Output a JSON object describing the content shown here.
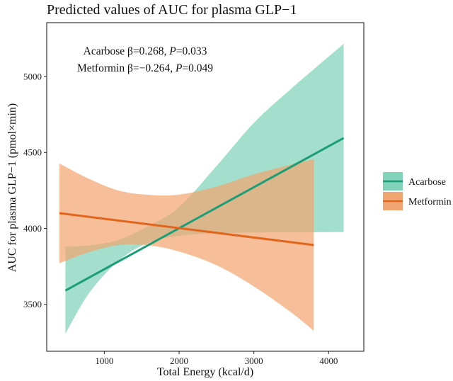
{
  "chart_data": {
    "type": "line",
    "title": "Predicted values of AUC for plasma GLP−1",
    "xlabel": "Total Energy (kcal/d)",
    "ylabel": "AUC for plasma GLP−1 (pmol×min)",
    "xlim": [
      230,
      4470
    ],
    "ylim": [
      3190,
      5355
    ],
    "xticks": [
      1000,
      2000,
      3000,
      4000
    ],
    "xtick_labels": [
      "1000",
      "2000",
      "3000",
      "4000"
    ],
    "yticks": [
      3500,
      4000,
      4500,
      5000
    ],
    "ytick_labels": [
      "3500",
      "4000",
      "4500",
      "5000"
    ],
    "grid": false,
    "legend_position": "right",
    "series": [
      {
        "name": "Acarbose",
        "color": "#1b9e77",
        "band_color": "#80d2b8",
        "x": [
          480,
          4200
        ],
        "fit": [
          3590,
          4595
        ],
        "band_x": [
          480,
          800,
          1200,
          1600,
          2000,
          2500,
          3000,
          3500,
          4200
        ],
        "band_lower": [
          3305,
          3575,
          3790,
          3908,
          3950,
          3968,
          3972,
          3973,
          3975
        ],
        "band_upper": [
          3878,
          3888,
          3925,
          4018,
          4140,
          4410,
          4695,
          4920,
          5215
        ]
      },
      {
        "name": "Metformin",
        "color": "#e1661b",
        "band_color": "#f2a672",
        "x": [
          400,
          3800
        ],
        "fit": [
          4100,
          3890
        ],
        "band_x": [
          400,
          800,
          1200,
          1600,
          2000,
          2500,
          3000,
          3500,
          3800
        ],
        "band_lower": [
          3770,
          3843,
          3890,
          3887,
          3847,
          3757,
          3617,
          3445,
          3325
        ],
        "band_upper": [
          4428,
          4325,
          4248,
          4220,
          4222,
          4275,
          4355,
          4420,
          4455
        ]
      }
    ],
    "annotations": [
      {
        "label": "Acarbose β=0.268, ",
        "p_label": "P",
        "value": "=0.033"
      },
      {
        "label": "Metformin β=−0.264, ",
        "p_label": "P",
        "value": "=0.049"
      }
    ]
  }
}
